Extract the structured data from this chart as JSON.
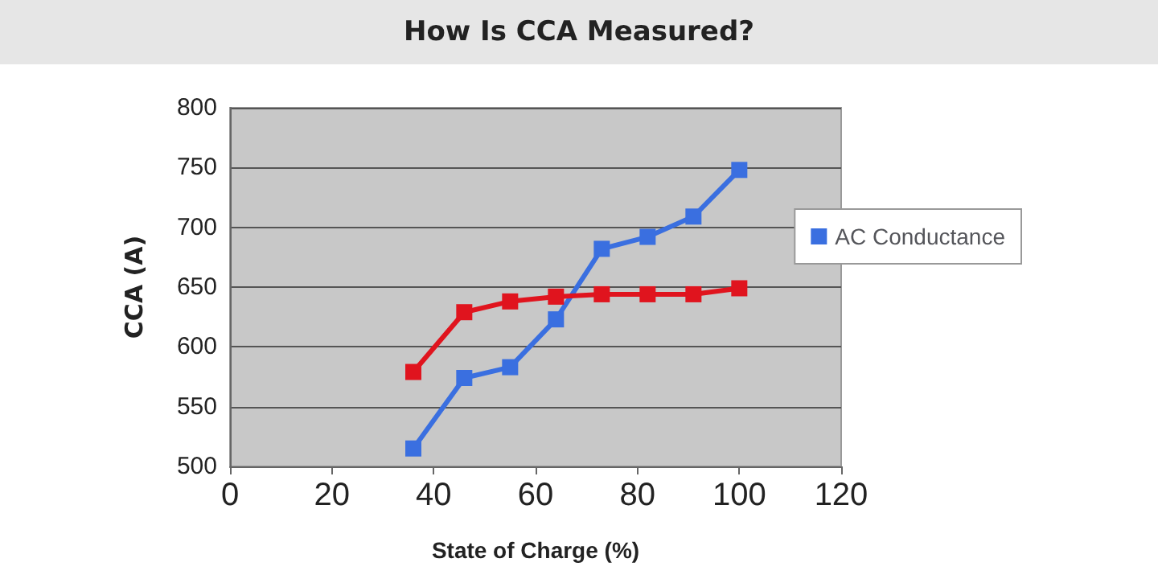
{
  "chart_data": {
    "type": "line",
    "title": "How Is CCA Measured?",
    "xlabel": "State of Charge (%)",
    "ylabel": "CCA (A)",
    "x": [
      36,
      46,
      55,
      64,
      73,
      82,
      91,
      100
    ],
    "series": [
      {
        "name": "AC Conductance",
        "color": "#3a6fe0",
        "values": [
          515,
          574,
          583,
          623,
          682,
          692,
          709,
          748
        ]
      },
      {
        "color": "#e0141e",
        "values": [
          579,
          629,
          638,
          642,
          644,
          644,
          644,
          649
        ]
      }
    ],
    "xlim": [
      0,
      120
    ],
    "xticks": [
      0,
      20,
      40,
      60,
      80,
      100,
      120
    ],
    "ylim": [
      500,
      800
    ],
    "yticks": [
      500,
      550,
      600,
      650,
      700,
      750,
      800
    ],
    "grid": "y",
    "legend": "right",
    "marker": "square",
    "line_style": "solid"
  }
}
